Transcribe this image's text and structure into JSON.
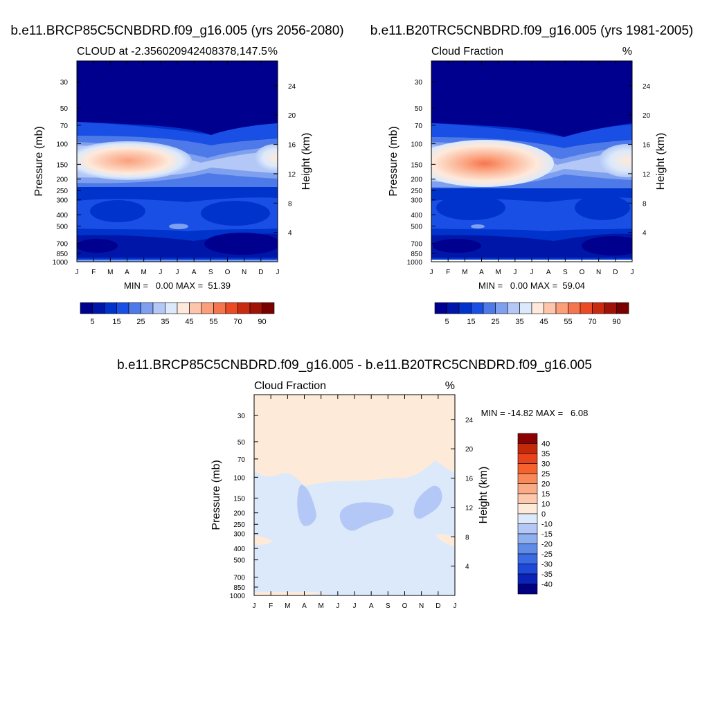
{
  "chart_data": [
    {
      "type": "heatmap",
      "main_title": "b.e11.BRCP85C5CNBDRD.f09_g16.005 (yrs 2056-2080)",
      "left_title": "CLOUD at -2.356020942408378,147.5",
      "right_title": "%",
      "ylabel": "Pressure (mb)",
      "ylabel_right": "Height (km)",
      "x_ticks": [
        "J",
        "F",
        "M",
        "A",
        "M",
        "J",
        "J",
        "A",
        "S",
        "O",
        "N",
        "D",
        "J"
      ],
      "pressure_ticks": [
        "30",
        "50",
        "70",
        "100",
        "150",
        "200",
        "250",
        "300",
        "400",
        "500",
        "700",
        "850",
        "1000"
      ],
      "height_ticks": [
        "24",
        "20",
        "16",
        "12",
        "8",
        "4"
      ],
      "ylim": [
        20,
        1000
      ],
      "min_max_text": "MIN =   0.00 MAX =  51.39",
      "min": 0.0,
      "max": 51.39,
      "features": [
        {
          "label": "upper-tropospheric cloud maximum",
          "month": 2.2,
          "pressure": 150,
          "value": 51
        }
      ],
      "colorbar": {
        "orientation": "horizontal",
        "labels": [
          "5",
          "15",
          "25",
          "35",
          "45",
          "55",
          "70",
          "90"
        ],
        "colors": [
          "#00008f",
          "#0016a8",
          "#0033cc",
          "#1a4fe6",
          "#4d7ae8",
          "#7fa0ee",
          "#b3c8f6",
          "#dce9fb",
          "#fee9da",
          "#fcc5ac",
          "#fb9f7b",
          "#f5764e",
          "#ec4a25",
          "#c92b10",
          "#a01206",
          "#7a0000"
        ]
      }
    },
    {
      "type": "heatmap",
      "main_title": "b.e11.B20TRC5CNBDRD.f09_g16.005 (yrs 1981-2005)",
      "left_title": "Cloud Fraction",
      "right_title": "%",
      "ylabel": "Pressure (mb)",
      "ylabel_right": "Height (km)",
      "x_ticks": [
        "J",
        "F",
        "M",
        "A",
        "M",
        "J",
        "J",
        "A",
        "S",
        "O",
        "N",
        "D",
        "J"
      ],
      "pressure_ticks": [
        "30",
        "50",
        "70",
        "100",
        "150",
        "200",
        "250",
        "300",
        "400",
        "500",
        "700",
        "850",
        "1000"
      ],
      "height_ticks": [
        "24",
        "20",
        "16",
        "12",
        "8",
        "4"
      ],
      "ylim": [
        20,
        1000
      ],
      "min_max_text": "MIN =   0.00 MAX =  59.04",
      "min": 0.0,
      "max": 59.04,
      "features": [
        {
          "label": "upper-tropospheric cloud maximum",
          "month": 2.9,
          "pressure": 150,
          "value": 59
        }
      ],
      "colorbar": {
        "orientation": "horizontal",
        "labels": [
          "5",
          "15",
          "25",
          "35",
          "45",
          "55",
          "70",
          "90"
        ],
        "colors": [
          "#00008f",
          "#0016a8",
          "#0033cc",
          "#1a4fe6",
          "#4d7ae8",
          "#7fa0ee",
          "#b3c8f6",
          "#dce9fb",
          "#fee9da",
          "#fcc5ac",
          "#fb9f7b",
          "#f5764e",
          "#ec4a25",
          "#c92b10",
          "#a01206",
          "#7a0000"
        ]
      }
    },
    {
      "type": "heatmap",
      "main_title": "b.e11.BRCP85C5CNBDRD.f09_g16.005 - b.e11.B20TRC5CNBDRD.f09_g16.005",
      "left_title": "Cloud Fraction",
      "right_title": "%",
      "ylabel": "Pressure (mb)",
      "ylabel_right": "Height (km)",
      "x_ticks": [
        "J",
        "F",
        "M",
        "A",
        "M",
        "J",
        "J",
        "A",
        "S",
        "O",
        "N",
        "D",
        "J"
      ],
      "pressure_ticks": [
        "30",
        "50",
        "70",
        "100",
        "150",
        "200",
        "250",
        "300",
        "400",
        "500",
        "700",
        "850",
        "1000"
      ],
      "height_ticks": [
        "24",
        "20",
        "16",
        "12",
        "8",
        "4"
      ],
      "ylim": [
        20,
        1000
      ],
      "min_max_text": "MIN = -14.82 MAX =   6.08",
      "min": -14.82,
      "max": 6.08,
      "colorbar": {
        "orientation": "vertical",
        "labels": [
          "40",
          "35",
          "30",
          "25",
          "20",
          "15",
          "10",
          "0",
          "-10",
          "-15",
          "-20",
          "-25",
          "-30",
          "-35",
          "-40"
        ],
        "colors": [
          "#8b0000",
          "#c42a0a",
          "#e8431a",
          "#f5622e",
          "#f98a58",
          "#fbaa86",
          "#fcc9ad",
          "#feead8",
          "#dce9fb",
          "#b3c8f6",
          "#8fb0f0",
          "#5f8ce8",
          "#3a6ae4",
          "#1e48d8",
          "#0a22b8",
          "#000080"
        ]
      }
    }
  ]
}
